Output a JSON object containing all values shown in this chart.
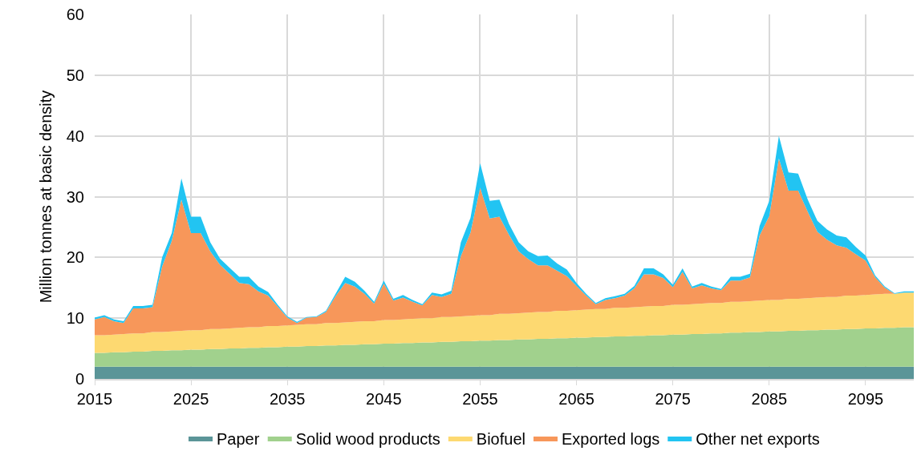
{
  "chart_data": {
    "type": "area",
    "stacked": true,
    "ylabel": "Million tonnes at basic density",
    "x": [
      2015,
      2016,
      2017,
      2018,
      2019,
      2020,
      2021,
      2022,
      2023,
      2024,
      2025,
      2026,
      2027,
      2028,
      2029,
      2030,
      2031,
      2032,
      2033,
      2034,
      2035,
      2036,
      2037,
      2038,
      2039,
      2040,
      2041,
      2042,
      2043,
      2044,
      2045,
      2046,
      2047,
      2048,
      2049,
      2050,
      2051,
      2052,
      2053,
      2054,
      2055,
      2056,
      2057,
      2058,
      2059,
      2060,
      2061,
      2062,
      2063,
      2064,
      2065,
      2066,
      2067,
      2068,
      2069,
      2070,
      2071,
      2072,
      2073,
      2074,
      2075,
      2076,
      2077,
      2078,
      2079,
      2080,
      2081,
      2082,
      2083,
      2084,
      2085,
      2086,
      2087,
      2088,
      2089,
      2090,
      2091,
      2092,
      2093,
      2094,
      2095,
      2096,
      2097,
      2098,
      2099,
      2100
    ],
    "series": [
      {
        "name": "Paper",
        "color": "#5b9598",
        "values": [
          2,
          2,
          2,
          2,
          2,
          2,
          2,
          2,
          2,
          2,
          2,
          2,
          2,
          2,
          2,
          2,
          2,
          2,
          2,
          2,
          2,
          2,
          2,
          2,
          2,
          2,
          2,
          2,
          2,
          2,
          2,
          2,
          2,
          2,
          2,
          2,
          2,
          2,
          2,
          2,
          2,
          2,
          2,
          2,
          2,
          2,
          2,
          2,
          2,
          2,
          2,
          2,
          2,
          2,
          2,
          2,
          2,
          2,
          2,
          2,
          2,
          2,
          2,
          2,
          2,
          2,
          2,
          2,
          2,
          2,
          2,
          2,
          2,
          2,
          2,
          2,
          2,
          2,
          2,
          2,
          2,
          2,
          2,
          2,
          2,
          2
        ]
      },
      {
        "name": "Solid wood products",
        "color": "#a1d18d",
        "values": [
          2.3,
          2.3,
          2.4,
          2.4,
          2.5,
          2.5,
          2.6,
          2.6,
          2.7,
          2.7,
          2.8,
          2.8,
          2.9,
          2.9,
          3.0,
          3.0,
          3.1,
          3.1,
          3.2,
          3.2,
          3.3,
          3.3,
          3.4,
          3.4,
          3.5,
          3.5,
          3.6,
          3.6,
          3.7,
          3.7,
          3.8,
          3.8,
          3.9,
          3.9,
          4.0,
          4.0,
          4.1,
          4.1,
          4.2,
          4.2,
          4.3,
          4.3,
          4.4,
          4.4,
          4.5,
          4.5,
          4.6,
          4.6,
          4.7,
          4.7,
          4.8,
          4.8,
          4.9,
          4.9,
          5.0,
          5.0,
          5.1,
          5.1,
          5.2,
          5.2,
          5.3,
          5.3,
          5.4,
          5.4,
          5.5,
          5.5,
          5.6,
          5.6,
          5.7,
          5.7,
          5.8,
          5.8,
          5.9,
          5.9,
          6.0,
          6.0,
          6.1,
          6.1,
          6.2,
          6.2,
          6.3,
          6.3,
          6.4,
          6.4,
          6.5,
          6.5
        ]
      },
      {
        "name": "Biofuel",
        "color": "#fdd971",
        "values": [
          2.9,
          2.9,
          2.9,
          3.0,
          3.0,
          3.0,
          3.1,
          3.1,
          3.1,
          3.2,
          3.2,
          3.2,
          3.3,
          3.3,
          3.3,
          3.4,
          3.4,
          3.4,
          3.5,
          3.5,
          3.5,
          3.6,
          3.6,
          3.6,
          3.7,
          3.7,
          3.7,
          3.8,
          3.8,
          3.8,
          3.9,
          3.9,
          3.9,
          4.0,
          4.0,
          4.0,
          4.1,
          4.1,
          4.1,
          4.2,
          4.2,
          4.2,
          4.3,
          4.3,
          4.3,
          4.4,
          4.4,
          4.4,
          4.5,
          4.5,
          4.5,
          4.6,
          4.6,
          4.6,
          4.7,
          4.7,
          4.7,
          4.8,
          4.8,
          4.8,
          4.9,
          4.9,
          4.9,
          5.0,
          5.0,
          5.0,
          5.1,
          5.1,
          5.1,
          5.2,
          5.2,
          5.2,
          5.3,
          5.3,
          5.3,
          5.4,
          5.4,
          5.4,
          5.5,
          5.5,
          5.5,
          5.6,
          5.6,
          5.6,
          5.7,
          5.7
        ]
      },
      {
        "name": "Exported logs",
        "color": "#f7975a",
        "values": [
          2.6,
          3.0,
          2.2,
          1.8,
          4.1,
          4.1,
          4.1,
          10.8,
          14.9,
          21.6,
          16.0,
          16.0,
          12.8,
          10.6,
          9.0,
          7.4,
          7.1,
          5.9,
          5.0,
          3.2,
          1.3,
          0.3,
          1.1,
          1.2,
          1.8,
          4.4,
          6.5,
          5.8,
          4.5,
          2.9,
          6.0,
          3.2,
          3.6,
          2.8,
          2.1,
          3.8,
          3.3,
          3.8,
          9.9,
          13.7,
          21.0,
          15.9,
          16.0,
          13.0,
          10.2,
          8.8,
          7.7,
          7.7,
          6.6,
          5.7,
          4.0,
          2.3,
          0.8,
          1.5,
          1.6,
          2.0,
          3.1,
          5.3,
          5.2,
          4.6,
          2.9,
          5.4,
          2.6,
          3.0,
          2.4,
          2.1,
          3.5,
          3.5,
          3.9,
          10.7,
          13.8,
          23.3,
          17.8,
          17.8,
          14.2,
          10.8,
          9.4,
          8.5,
          7.9,
          6.8,
          5.7,
          2.8,
          1.0,
          0,
          0,
          0
        ]
      },
      {
        "name": "Other net exports",
        "color": "#22c4f2",
        "values": [
          0.3,
          0.3,
          0.3,
          0.3,
          0.4,
          0.4,
          0.4,
          1.5,
          1.3,
          3.5,
          2.7,
          2.7,
          1.5,
          1.0,
          1.0,
          1.0,
          1.2,
          0.8,
          0.6,
          0.3,
          0.2,
          0.2,
          0.1,
          0.1,
          0.2,
          0.4,
          1.0,
          0.8,
          0.5,
          0.3,
          0.5,
          0.3,
          0.4,
          0.3,
          0.2,
          0.4,
          0.4,
          0.5,
          2.3,
          2.4,
          4.0,
          2.9,
          2.8,
          1.8,
          1.5,
          1.3,
          1.5,
          1.6,
          1.2,
          1.1,
          0.5,
          0.3,
          0.2,
          0.3,
          0.3,
          0.3,
          0.4,
          1.0,
          1.0,
          0.6,
          0.4,
          0.6,
          0.3,
          0.4,
          0.3,
          0.2,
          0.6,
          0.6,
          0.6,
          1.6,
          2.5,
          3.7,
          3.0,
          2.8,
          2.0,
          1.8,
          1.7,
          1.6,
          1.7,
          1.2,
          0.8,
          0.3,
          0.2,
          0.1,
          0.2,
          0.2
        ]
      }
    ],
    "xlim": [
      2015,
      2100
    ],
    "xticks": [
      2015,
      2025,
      2035,
      2045,
      2055,
      2065,
      2075,
      2085,
      2095
    ],
    "ylim": [
      0,
      60
    ],
    "yticks": [
      0,
      10,
      20,
      30,
      40,
      50,
      60
    ],
    "grid": true,
    "legend": "bottom"
  }
}
